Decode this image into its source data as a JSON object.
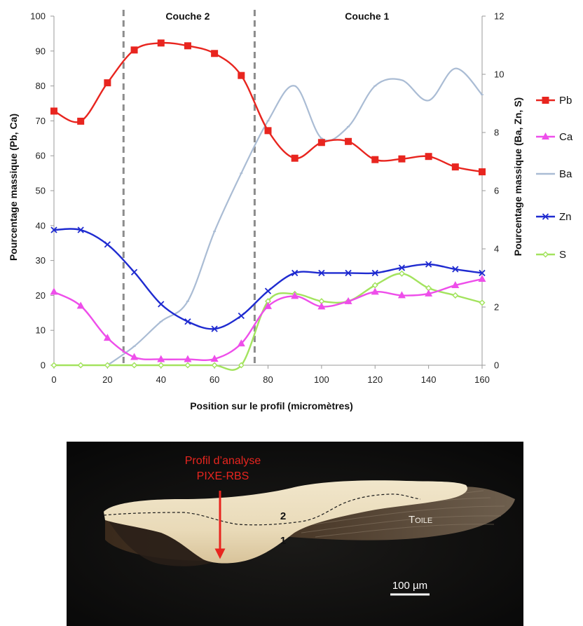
{
  "chart_data": {
    "type": "line",
    "title": "",
    "xlabel": "Position sur le profil (micromètres)",
    "ylabel_left": "Pourcentage massique (Pb, Ca)",
    "ylabel_right": "Pourcentage massique (Ba, Zn, S)",
    "xlim": [
      0,
      160
    ],
    "ylim_left": [
      0,
      100
    ],
    "ylim_right": [
      0,
      12
    ],
    "x_ticks": [
      0,
      20,
      40,
      60,
      80,
      100,
      120,
      140,
      160
    ],
    "y_left_ticks": [
      0,
      10,
      20,
      30,
      40,
      50,
      60,
      70,
      80,
      90,
      100
    ],
    "y_right_ticks": [
      0,
      2,
      4,
      6,
      8,
      10,
      12
    ],
    "grid": false,
    "legend_position": "right",
    "layer_boundaries": [
      26,
      75
    ],
    "layers": [
      {
        "label": "Couche 2",
        "x": 50
      },
      {
        "label": "Couche 1",
        "x": 117
      }
    ],
    "series": [
      {
        "name": "Pb",
        "axis": "left",
        "color": "#e8251f",
        "marker": "square",
        "x": [
          0,
          10,
          20,
          30,
          40,
          50,
          60,
          70,
          80,
          90,
          100,
          110,
          120,
          130,
          140,
          150,
          160
        ],
        "y": [
          72.8,
          69.9,
          80.9,
          90.3,
          92.3,
          91.5,
          89.3,
          83.0,
          67.2,
          59.3,
          63.8,
          64.1,
          58.9,
          59.1,
          59.8,
          56.8,
          55.4
        ]
      },
      {
        "name": "Ca",
        "axis": "left",
        "color": "#ee4eea",
        "marker": "triangle",
        "x": [
          0,
          10,
          20,
          30,
          40,
          50,
          60,
          70,
          80,
          90,
          100,
          110,
          120,
          130,
          140,
          150,
          160
        ],
        "y": [
          21.0,
          17.0,
          7.8,
          2.3,
          1.7,
          1.7,
          1.8,
          6.2,
          16.9,
          19.8,
          16.8,
          18.3,
          21.0,
          20.0,
          20.5,
          22.9,
          24.7
        ]
      },
      {
        "name": "Ba",
        "axis": "right",
        "color": "#aabcd4",
        "marker": "dash",
        "x": [
          0,
          10,
          20,
          30,
          40,
          50,
          60,
          70,
          80,
          90,
          100,
          110,
          120,
          130,
          140,
          150,
          160
        ],
        "y": [
          null,
          null,
          0.0,
          0.65,
          1.5,
          2.2,
          4.6,
          6.6,
          8.4,
          9.6,
          7.8,
          8.2,
          9.6,
          9.8,
          9.1,
          10.2,
          9.3
        ]
      },
      {
        "name": "Zn",
        "axis": "right",
        "color": "#1f2bd0",
        "marker": "x",
        "x": [
          0,
          10,
          20,
          30,
          40,
          50,
          60,
          70,
          80,
          90,
          100,
          110,
          120,
          130,
          140,
          150,
          160
        ],
        "y": [
          4.65,
          4.65,
          4.15,
          3.2,
          2.1,
          1.5,
          1.25,
          1.7,
          2.55,
          3.17,
          3.17,
          3.17,
          3.17,
          3.35,
          3.47,
          3.3,
          3.17
        ]
      },
      {
        "name": "S",
        "axis": "right",
        "color": "#a3e35e",
        "marker": "diamond",
        "x": [
          0,
          10,
          20,
          30,
          40,
          50,
          60,
          70,
          80,
          90,
          100,
          110,
          120,
          130,
          140,
          150,
          160
        ],
        "y": [
          0,
          0,
          0,
          0,
          0,
          0,
          0,
          0,
          2.2,
          2.45,
          2.2,
          2.2,
          2.75,
          3.15,
          2.65,
          2.4,
          2.15
        ]
      }
    ]
  },
  "micrograph": {
    "profile_label_line1": "Profil d’analyse",
    "profile_label_line2": "PIXE-RBS",
    "layer_2_label": "2",
    "layer_1_label": "1",
    "toile_label_first": "T",
    "toile_label_rest": "OILE",
    "scale_bar_label": "100 µm",
    "label_color": "#e8251f"
  }
}
